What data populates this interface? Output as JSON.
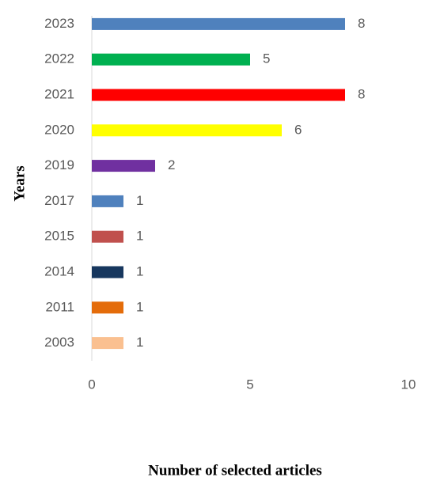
{
  "chart_data": {
    "type": "bar",
    "orientation": "horizontal",
    "x_label": "Number of selected articles",
    "y_label": "Years",
    "categories": [
      "2023",
      "2022",
      "2021",
      "2020",
      "2019",
      "2017",
      "2015",
      "2014",
      "2011",
      "2003"
    ],
    "values": [
      8,
      5,
      8,
      6,
      2,
      1,
      1,
      1,
      1,
      1
    ],
    "colors": [
      "#4f81bd",
      "#00b050",
      "#ff0000",
      "#ffff00",
      "#7030a0",
      "#4f81bd",
      "#c0504d",
      "#17375e",
      "#e46c0a",
      "#fac090"
    ],
    "xlim": [
      0,
      10
    ],
    "xticks": [
      0,
      5,
      10
    ],
    "grid": false
  }
}
